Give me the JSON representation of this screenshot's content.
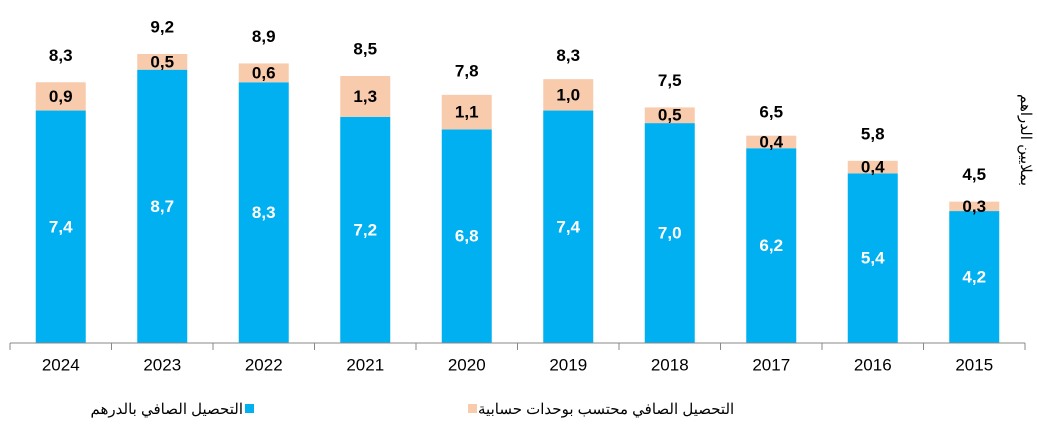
{
  "chart_data": {
    "type": "stacked_bar",
    "y_axis_label": "بملايين الدراهم",
    "categories": [
      "2024",
      "2023",
      "2022",
      "2021",
      "2020",
      "2019",
      "2018",
      "2017",
      "2016",
      "2015"
    ],
    "series": [
      {
        "name": "التحصيل الصافي بالدرهم",
        "color": "#00b0f0",
        "values": [
          7.4,
          8.7,
          8.3,
          7.2,
          6.8,
          7.4,
          7.0,
          6.2,
          5.4,
          4.2
        ],
        "value_labels": [
          "7,4",
          "8,7",
          "8,3",
          "7,2",
          "6,8",
          "7,4",
          "7,0",
          "6,2",
          "5,4",
          "4,2"
        ]
      },
      {
        "name": "التحصيل الصافي محتسب بوحدات حسابية",
        "color": "#f8cbad",
        "values": [
          0.9,
          0.5,
          0.6,
          1.3,
          1.1,
          1.0,
          0.5,
          0.4,
          0.4,
          0.3
        ],
        "value_labels": [
          "0,9",
          "0,5",
          "0,6",
          "1,3",
          "1,1",
          "1,0",
          "0,5",
          "0,4",
          "0,4",
          "0,3"
        ]
      }
    ],
    "totals": [
      8.3,
      9.2,
      8.9,
      8.5,
      7.8,
      8.3,
      7.5,
      6.5,
      5.8,
      4.5
    ],
    "total_labels": [
      "8,3",
      "9,2",
      "8,9",
      "8,5",
      "7,8",
      "8,3",
      "7,5",
      "6,5",
      "5,8",
      "4,5"
    ]
  }
}
